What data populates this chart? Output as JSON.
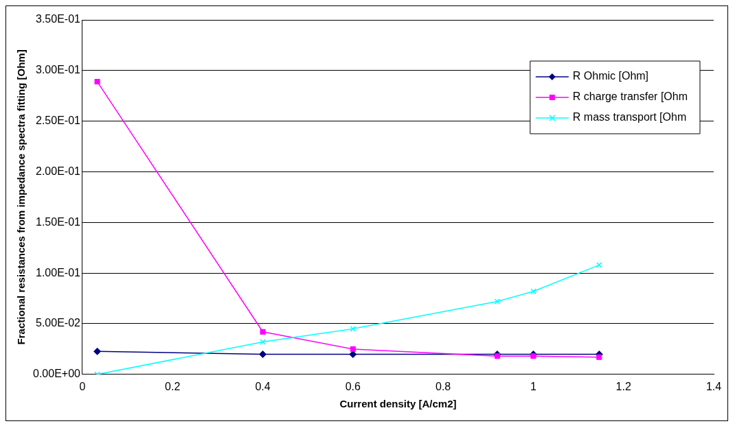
{
  "chart_data": {
    "type": "line",
    "xlabel": "Current density [A/cm2]",
    "ylabel": "Fractional resistances from impedance spectra fitting [Ohm]",
    "x": [
      0.033,
      0.4,
      0.6,
      0.92,
      1.0,
      1.146
    ],
    "series": [
      {
        "name": "R Ohmic [Ohm]",
        "color": "#000080",
        "marker": "diamond",
        "values": [
          0.0227,
          0.0198,
          0.0198,
          0.0198,
          0.0198,
          0.0198
        ]
      },
      {
        "name": "R charge transfer [Ohm",
        "color": "#ff00ff",
        "marker": "square",
        "values": [
          0.289,
          0.042,
          0.025,
          0.018,
          0.018,
          0.017
        ]
      },
      {
        "name": "R mass transport [Ohm",
        "color": "#00ffff",
        "marker": "cross",
        "values": [
          0,
          0.032,
          0.045,
          0.072,
          0.082,
          0.108
        ]
      }
    ],
    "xlim": [
      0,
      1.4
    ],
    "xticks": [
      0,
      0.2,
      0.4,
      0.6,
      0.8,
      1,
      1.2,
      1.4
    ],
    "ylim": [
      0,
      0.35
    ],
    "yticks": [
      {
        "value": 0,
        "label": "0.00E+00"
      },
      {
        "value": 0.05,
        "label": "5.00E-02"
      },
      {
        "value": 0.1,
        "label": "1.00E-01"
      },
      {
        "value": 0.15,
        "label": "1.50E-01"
      },
      {
        "value": 0.2,
        "label": "2.00E-01"
      },
      {
        "value": 0.25,
        "label": "2.50E-01"
      },
      {
        "value": 0.3,
        "label": "3.00E-01"
      },
      {
        "value": 0.35,
        "label": "3.50E-01"
      }
    ],
    "grid": "y",
    "legend": "top right",
    "line_style": "solid"
  }
}
